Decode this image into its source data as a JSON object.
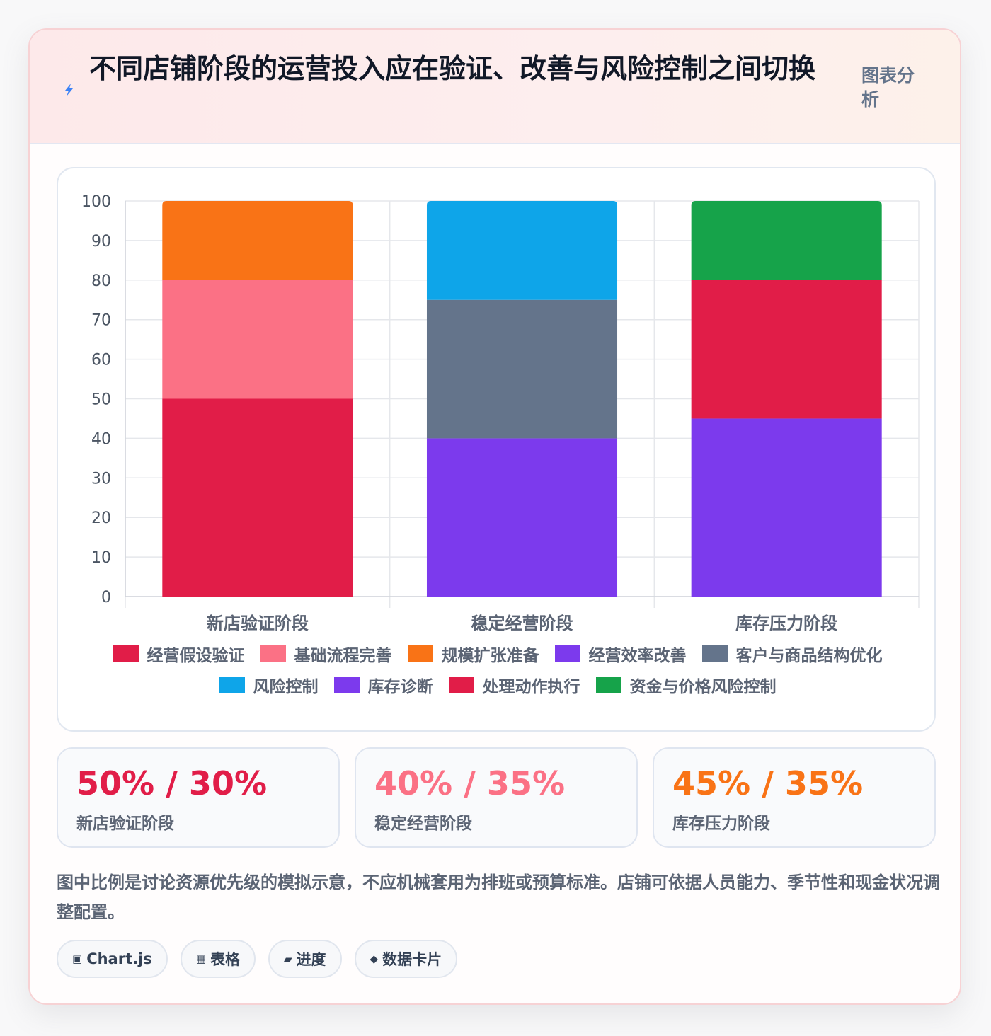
{
  "header": {
    "title": "不同店铺阶段的运营投入应在验证、改善与风险控制之间切换",
    "tag": "图表分析",
    "icon": "lightning-icon",
    "icon_color": "#3b82f6"
  },
  "chart_data": {
    "type": "bar",
    "stacked": true,
    "categories": [
      "新店验证阶段",
      "稳定经营阶段",
      "库存压力阶段"
    ],
    "ylim": [
      0,
      100
    ],
    "yticks": [
      0,
      10,
      20,
      30,
      40,
      50,
      60,
      70,
      80,
      90,
      100
    ],
    "grid": true,
    "legend_position": "bottom",
    "series": [
      {
        "name": "经营假设验证",
        "color": "#e11d48",
        "values": [
          50,
          0,
          0
        ]
      },
      {
        "name": "基础流程完善",
        "color": "#fb7185",
        "values": [
          30,
          0,
          0
        ]
      },
      {
        "name": "规模扩张准备",
        "color": "#f97316",
        "values": [
          20,
          0,
          0
        ]
      },
      {
        "name": "经营效率改善",
        "color": "#7c3aed",
        "values": [
          0,
          40,
          0
        ]
      },
      {
        "name": "客户与商品结构优化",
        "color": "#64748b",
        "values": [
          0,
          35,
          0
        ]
      },
      {
        "name": "风险控制",
        "color": "#0ea5e9",
        "values": [
          0,
          25,
          0
        ]
      },
      {
        "name": "库存诊断",
        "color": "#7c3aed",
        "values": [
          0,
          0,
          45
        ]
      },
      {
        "name": "处理动作执行",
        "color": "#e11d48",
        "values": [
          0,
          0,
          35
        ]
      },
      {
        "name": "资金与价格风险控制",
        "color": "#16a34a",
        "values": [
          0,
          0,
          20
        ]
      }
    ]
  },
  "stats": [
    {
      "value": "50% / 30%",
      "label": "新店验证阶段",
      "color": "#e11d48"
    },
    {
      "value": "40% / 35%",
      "label": "稳定经营阶段",
      "color": "#fb7185"
    },
    {
      "value": "45% / 35%",
      "label": "库存压力阶段",
      "color": "#f97316"
    }
  ],
  "note": "图中比例是讨论资源优先级的模拟示意，不应机械套用为排班或预算标准。店铺可依据人员能力、季节性和现金状况调整配置。",
  "chips": [
    {
      "icon": "▣",
      "icon_name": "chart-icon",
      "label": "Chart.js"
    },
    {
      "icon": "▦",
      "icon_name": "table-icon",
      "label": "表格"
    },
    {
      "icon": "▰",
      "icon_name": "progress-icon",
      "label": "进度"
    },
    {
      "icon": "◆",
      "icon_name": "data-card-icon",
      "label": "数据卡片"
    }
  ]
}
